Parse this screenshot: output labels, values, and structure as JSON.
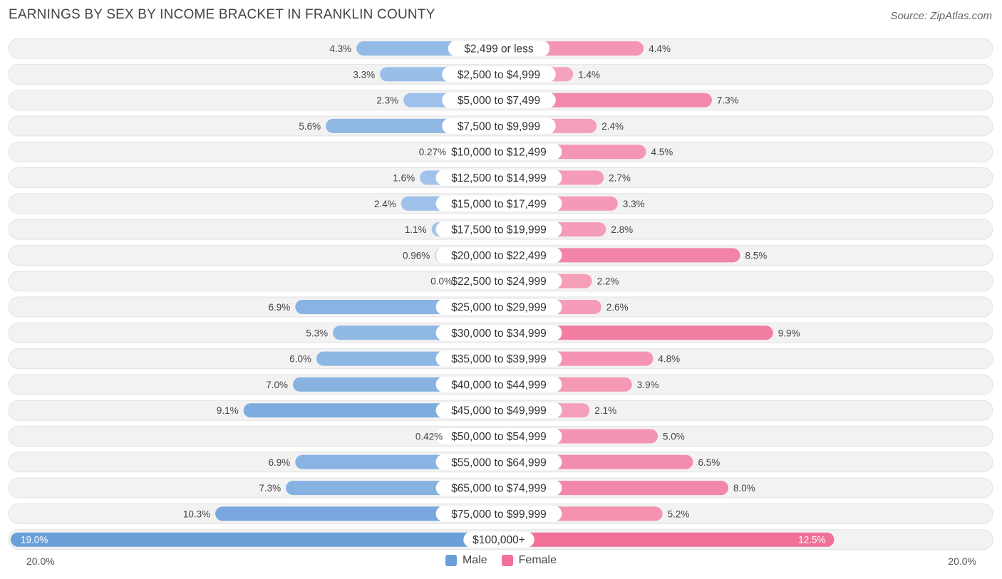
{
  "header": {
    "title": "EARNINGS BY SEX BY INCOME BRACKET IN FRANKLIN COUNTY",
    "source": "Source: ZipAtlas.com"
  },
  "colors": {
    "male": "#6a9fd8",
    "male_light": "#a8c8ec",
    "female": "#f07098",
    "female_light": "#f6a8c0",
    "row_bg": "#f2f2f2"
  },
  "legend": {
    "male_label": "Male",
    "female_label": "Female"
  },
  "axis": {
    "left_label": "20.0%",
    "right_label": "20.0%"
  },
  "chart_data": {
    "type": "bar",
    "orientation": "horizontal-diverging",
    "title": "EARNINGS BY SEX BY INCOME BRACKET IN FRANKLIN COUNTY",
    "xlim": [
      -20,
      20
    ],
    "categories": [
      "$2,499 or less",
      "$2,500 to $4,999",
      "$5,000 to $7,499",
      "$7,500 to $9,999",
      "$10,000 to $12,499",
      "$12,500 to $14,999",
      "$15,000 to $17,499",
      "$17,500 to $19,999",
      "$20,000 to $22,499",
      "$22,500 to $24,999",
      "$25,000 to $29,999",
      "$30,000 to $34,999",
      "$35,000 to $39,999",
      "$40,000 to $44,999",
      "$45,000 to $49,999",
      "$50,000 to $54,999",
      "$55,000 to $64,999",
      "$65,000 to $74,999",
      "$75,000 to $99,999",
      "$100,000+"
    ],
    "series": [
      {
        "name": "Male",
        "values": [
          4.3,
          3.3,
          2.3,
          5.6,
          0.27,
          1.6,
          2.4,
          1.1,
          0.96,
          0.0,
          6.9,
          5.3,
          6.0,
          7.0,
          9.1,
          0.42,
          6.9,
          7.3,
          10.3,
          19.0
        ],
        "labels": [
          "4.3%",
          "3.3%",
          "2.3%",
          "5.6%",
          "0.27%",
          "1.6%",
          "2.4%",
          "1.1%",
          "0.96%",
          "0.0%",
          "6.9%",
          "5.3%",
          "6.0%",
          "7.0%",
          "9.1%",
          "0.42%",
          "6.9%",
          "7.3%",
          "10.3%",
          "19.0%"
        ]
      },
      {
        "name": "Female",
        "values": [
          4.4,
          1.4,
          7.3,
          2.4,
          4.5,
          2.7,
          3.3,
          2.8,
          8.5,
          2.2,
          2.6,
          9.9,
          4.8,
          3.9,
          2.1,
          5.0,
          6.5,
          8.0,
          5.2,
          12.5
        ],
        "labels": [
          "4.4%",
          "1.4%",
          "7.3%",
          "2.4%",
          "4.5%",
          "2.7%",
          "3.3%",
          "2.8%",
          "8.5%",
          "2.2%",
          "2.6%",
          "9.9%",
          "4.8%",
          "3.9%",
          "2.1%",
          "5.0%",
          "6.5%",
          "8.0%",
          "5.2%",
          "12.5%"
        ]
      }
    ]
  }
}
